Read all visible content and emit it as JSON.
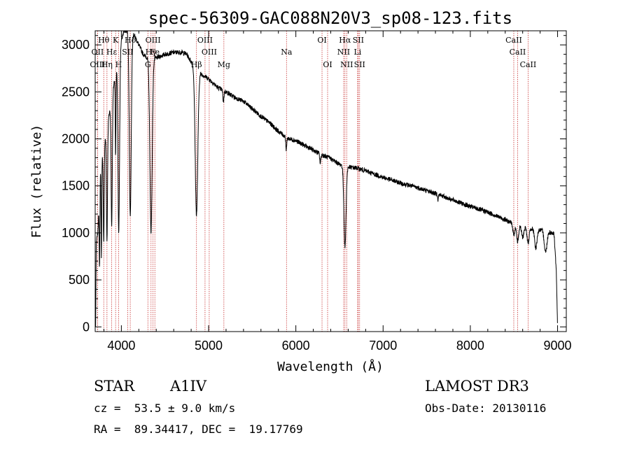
{
  "chart_data": {
    "type": "line",
    "title": "spec-56309-GAC088N20V3_sp08-123.fits",
    "xlabel": "Wavelength (Å)",
    "ylabel": "Flux (relative)",
    "xlim": [
      3700,
      9100
    ],
    "ylim": [
      -50,
      3150
    ],
    "xticks": [
      4000,
      5000,
      6000,
      7000,
      8000,
      9000
    ],
    "xtick_labels": [
      "4000",
      "5000",
      "6000",
      "7000",
      "8000",
      "9000"
    ],
    "yticks": [
      0,
      500,
      1000,
      1500,
      2000,
      2500,
      3000
    ],
    "ytick_labels": [
      "0",
      "500",
      "1000",
      "1500",
      "2000",
      "2500",
      "3000"
    ],
    "grid": false,
    "spectrum": {
      "continuum": [
        [
          3705,
          0
        ],
        [
          3712,
          900
        ],
        [
          3730,
          1000
        ],
        [
          3760,
          1700
        ],
        [
          3800,
          1900
        ],
        [
          3850,
          2200
        ],
        [
          3900,
          2500
        ],
        [
          3950,
          2800
        ],
        [
          4000,
          3050
        ],
        [
          4030,
          3150
        ],
        [
          4070,
          3150
        ],
        [
          4150,
          3100
        ],
        [
          4200,
          3000
        ],
        [
          4250,
          2900
        ],
        [
          4300,
          2860
        ],
        [
          4400,
          2860
        ],
        [
          4500,
          2900
        ],
        [
          4600,
          2920
        ],
        [
          4700,
          2920
        ],
        [
          4750,
          2900
        ],
        [
          4800,
          2820
        ],
        [
          4900,
          2700
        ],
        [
          5000,
          2640
        ],
        [
          5100,
          2550
        ],
        [
          5200,
          2500
        ],
        [
          5300,
          2440
        ],
        [
          5400,
          2400
        ],
        [
          5500,
          2320
        ],
        [
          5600,
          2240
        ],
        [
          5700,
          2170
        ],
        [
          5800,
          2080
        ],
        [
          5900,
          2010
        ],
        [
          6000,
          1980
        ],
        [
          6100,
          1930
        ],
        [
          6200,
          1880
        ],
        [
          6300,
          1830
        ],
        [
          6400,
          1790
        ],
        [
          6500,
          1730
        ],
        [
          6600,
          1700
        ],
        [
          6700,
          1690
        ],
        [
          6800,
          1660
        ],
        [
          7000,
          1590
        ],
        [
          7200,
          1530
        ],
        [
          7400,
          1480
        ],
        [
          7600,
          1420
        ],
        [
          7800,
          1350
        ],
        [
          8000,
          1280
        ],
        [
          8200,
          1220
        ],
        [
          8400,
          1140
        ],
        [
          8500,
          1090
        ],
        [
          8600,
          1070
        ],
        [
          8700,
          1050
        ],
        [
          8800,
          1030
        ],
        [
          8900,
          1010
        ],
        [
          8960,
          990
        ],
        [
          8985,
          600
        ],
        [
          9000,
          0
        ]
      ],
      "absorption_lines": [
        {
          "center": 3750,
          "depth": 850,
          "width": 4
        },
        {
          "center": 3771,
          "depth": 1000,
          "width": 4
        },
        {
          "center": 3798,
          "depth": 1000,
          "width": 5
        },
        {
          "center": 3835,
          "depth": 1200,
          "width": 6
        },
        {
          "center": 3889,
          "depth": 1350,
          "width": 7
        },
        {
          "center": 3934,
          "depth": 900,
          "width": 4
        },
        {
          "center": 3970,
          "depth": 1900,
          "width": 9
        },
        {
          "center": 4102,
          "depth": 1950,
          "width": 11
        },
        {
          "center": 4340,
          "depth": 1850,
          "width": 13
        },
        {
          "center": 4861,
          "depth": 1550,
          "width": 15
        },
        {
          "center": 5170,
          "depth": 120,
          "width": 6
        },
        {
          "center": 5890,
          "depth": 140,
          "width": 5
        },
        {
          "center": 6280,
          "depth": 100,
          "width": 6
        },
        {
          "center": 6563,
          "depth": 860,
          "width": 12
        },
        {
          "center": 7630,
          "depth": 60,
          "width": 4
        },
        {
          "center": 8498,
          "depth": 110,
          "width": 10
        },
        {
          "center": 8542,
          "depth": 170,
          "width": 12
        },
        {
          "center": 8600,
          "depth": 120,
          "width": 12
        },
        {
          "center": 8662,
          "depth": 170,
          "width": 12
        },
        {
          "center": 8750,
          "depth": 200,
          "width": 14
        },
        {
          "center": 8863,
          "depth": 220,
          "width": 15
        }
      ],
      "noise": 25
    },
    "line_markers": [
      {
        "label": "Hθ",
        "wavelength": 3798,
        "row": 0
      },
      {
        "label": "K",
        "wavelength": 3934,
        "row": 0
      },
      {
        "label": "Hδ",
        "wavelength": 4102,
        "row": 0
      },
      {
        "label": "OIII",
        "wavelength": 4363,
        "row": 0
      },
      {
        "label": "OIII",
        "wavelength": 4959,
        "row": 0
      },
      {
        "label": "OI",
        "wavelength": 6300,
        "row": 0
      },
      {
        "label": "Hα",
        "wavelength": 6563,
        "row": 0
      },
      {
        "label": "SII",
        "wavelength": 6716,
        "row": 0
      },
      {
        "label": "CaII",
        "wavelength": 8498,
        "row": 0
      },
      {
        "label": "OII",
        "wavelength": 3727,
        "row": 1
      },
      {
        "label": "Hε",
        "wavelength": 3889,
        "row": 1
      },
      {
        "label": "SII",
        "wavelength": 4072,
        "row": 1
      },
      {
        "label": "Hγ",
        "wavelength": 4340,
        "row": 1
      },
      {
        "label": "Fe",
        "wavelength": 4384,
        "row": 1
      },
      {
        "label": "OIII",
        "wavelength": 5007,
        "row": 1
      },
      {
        "label": "Na",
        "wavelength": 5893,
        "row": 1
      },
      {
        "label": "NII",
        "wavelength": 6548,
        "row": 1
      },
      {
        "label": "Li",
        "wavelength": 6708,
        "row": 1
      },
      {
        "label": "CaII",
        "wavelength": 8542,
        "row": 1
      },
      {
        "label": "OIII",
        "wavelength": 3727,
        "row": 2
      },
      {
        "label": "Hη",
        "wavelength": 3835,
        "row": 2
      },
      {
        "label": "H",
        "wavelength": 3968,
        "row": 2
      },
      {
        "label": "G",
        "wavelength": 4304,
        "row": 2
      },
      {
        "label": "Hβ",
        "wavelength": 4861,
        "row": 2
      },
      {
        "label": "Mg",
        "wavelength": 5175,
        "row": 2
      },
      {
        "label": "OI",
        "wavelength": 6364,
        "row": 2
      },
      {
        "label": "NII",
        "wavelength": 6583,
        "row": 2
      },
      {
        "label": "SII",
        "wavelength": 6731,
        "row": 2
      },
      {
        "label": "CaII",
        "wavelength": 8662,
        "row": 2
      }
    ],
    "colors": {
      "spectrum": "#000000",
      "markers": "#c83232",
      "axes": "#000000"
    }
  },
  "info": {
    "object_class": "STAR",
    "subclass": "A1IV",
    "survey": "LAMOST DR3",
    "redshift": "cz =  53.5 ± 9.0 km/s",
    "obs_date": "Obs-Date: 20130116",
    "coords": "RA =  89.34417, DEC =  19.17769"
  }
}
